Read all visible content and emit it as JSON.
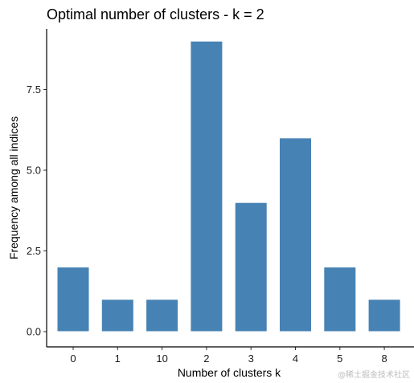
{
  "chart_data": {
    "type": "bar",
    "title": "Optimal number of clusters - k = 2",
    "xlabel": "Number of clusters k",
    "ylabel": "Frequency among all indices",
    "categories": [
      "0",
      "1",
      "10",
      "2",
      "3",
      "4",
      "5",
      "8"
    ],
    "values": [
      2,
      1,
      1,
      9,
      4,
      6,
      2,
      1
    ],
    "ylim": [
      0,
      9
    ],
    "yticks": [
      0.0,
      2.5,
      5.0,
      7.5
    ],
    "ytick_labels": [
      "0.0",
      "2.5",
      "5.0",
      "7.5"
    ],
    "bar_color": "#4682b4",
    "grid": false,
    "legend": "none"
  },
  "watermark": "@稀土掘金技术社区"
}
